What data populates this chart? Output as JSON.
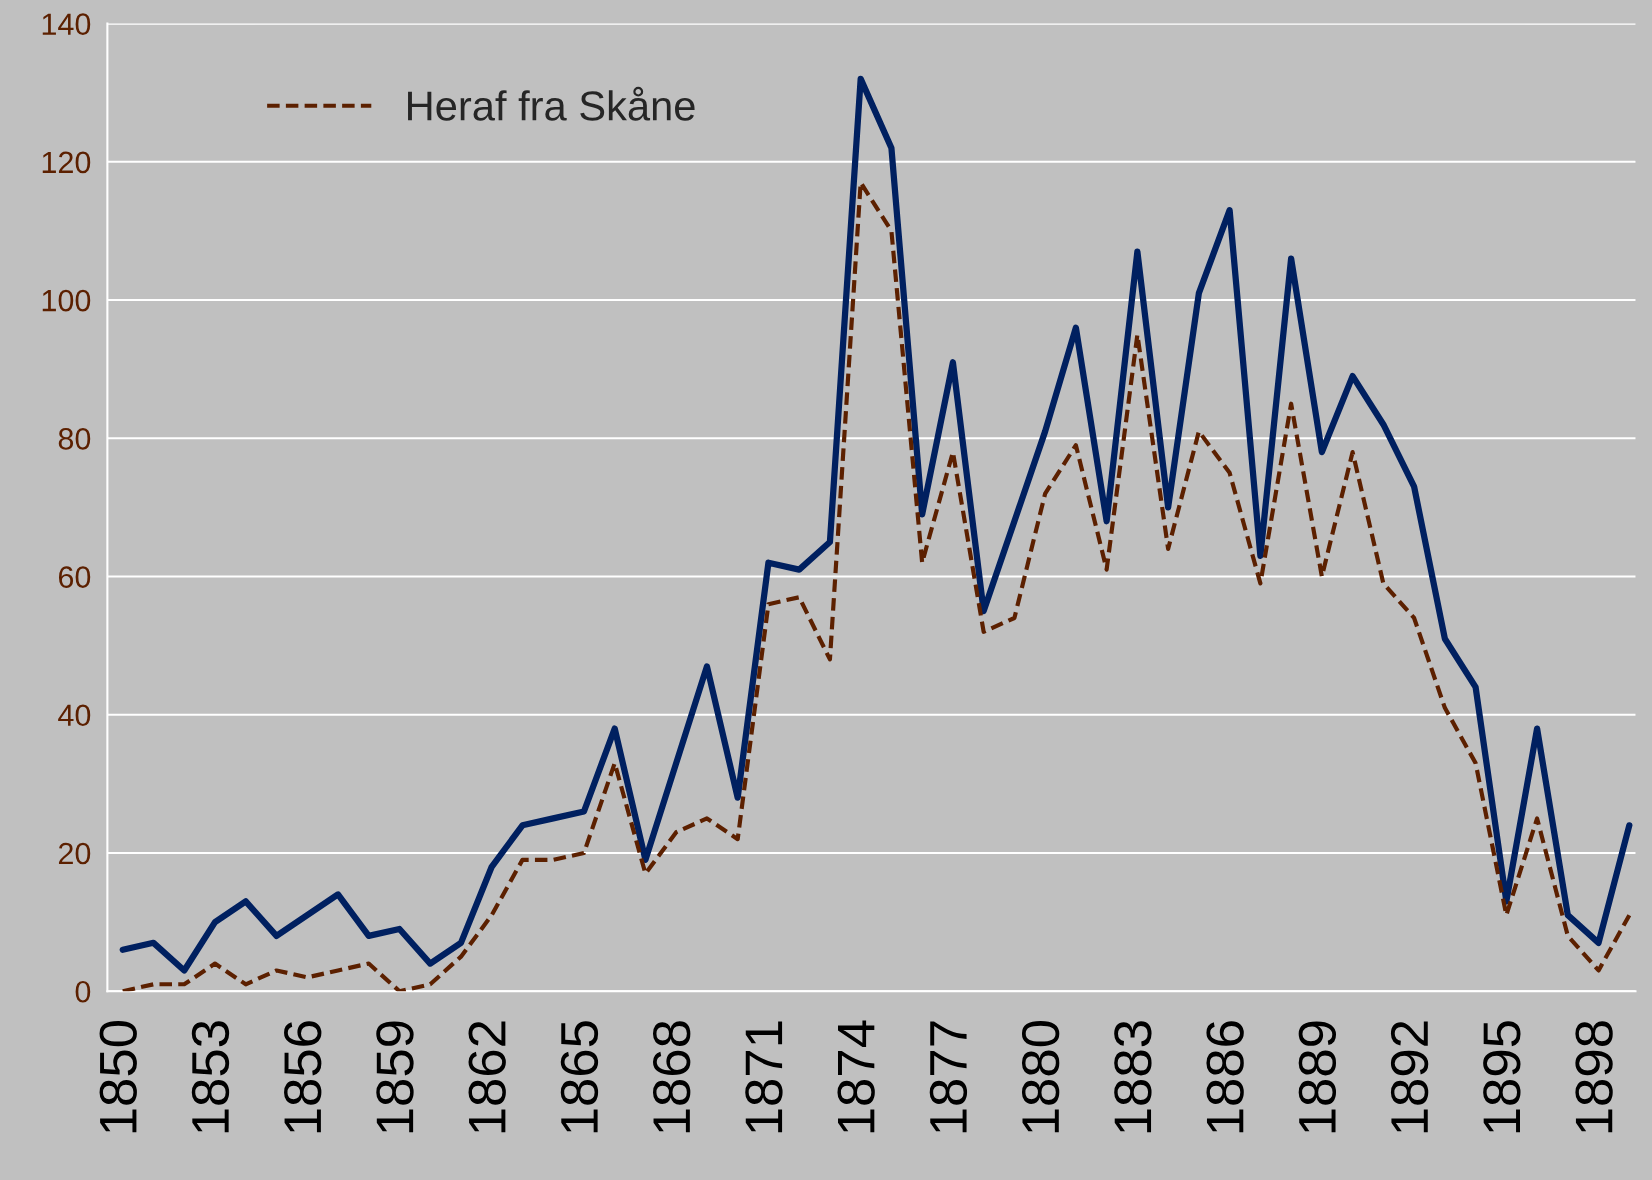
{
  "chart_data": {
    "type": "line",
    "categories": [
      "1850",
      null,
      null,
      "1853",
      null,
      null,
      "1856",
      null,
      null,
      "1859",
      null,
      null,
      "1862",
      null,
      null,
      "1865",
      null,
      null,
      "1868",
      null,
      null,
      "1871",
      null,
      null,
      "1874",
      null,
      null,
      "1877",
      null,
      null,
      "1880",
      null,
      null,
      "1883",
      null,
      null,
      "1886",
      null,
      null,
      "1889",
      null,
      null,
      "1892",
      null,
      null,
      "1895",
      null,
      null,
      "1898",
      null
    ],
    "series": [
      {
        "color": "#002060",
        "line_style": "solid",
        "values": [
          6,
          7,
          3,
          10,
          13,
          8,
          11,
          14,
          8,
          9,
          4,
          7,
          18,
          24,
          25,
          26,
          38,
          19,
          33,
          47,
          28,
          62,
          61,
          65,
          132,
          122,
          69,
          91,
          55,
          68,
          81,
          96,
          68,
          107,
          70,
          101,
          113,
          63,
          106,
          78,
          89,
          82,
          73,
          51,
          44,
          13,
          38,
          11,
          7,
          24
        ]
      },
      {
        "name": "Heraf fra Skåne",
        "color": "#5c2000",
        "line_style": "dashed",
        "values": [
          0,
          1,
          1,
          4,
          1,
          3,
          2,
          3,
          4,
          0,
          1,
          5,
          11,
          19,
          19,
          20,
          33,
          17,
          23,
          25,
          22,
          56,
          57,
          48,
          117,
          110,
          62,
          78,
          52,
          54,
          72,
          79,
          61,
          95,
          64,
          81,
          75,
          59,
          85,
          60,
          78,
          59,
          54,
          41,
          33,
          11,
          25,
          8,
          3,
          11
        ]
      }
    ],
    "ylim": [
      0,
      140
    ],
    "yticks": [
      0,
      20,
      40,
      60,
      80,
      100,
      120,
      140
    ],
    "grid": "y",
    "legend": "top left",
    "marker": "none"
  }
}
